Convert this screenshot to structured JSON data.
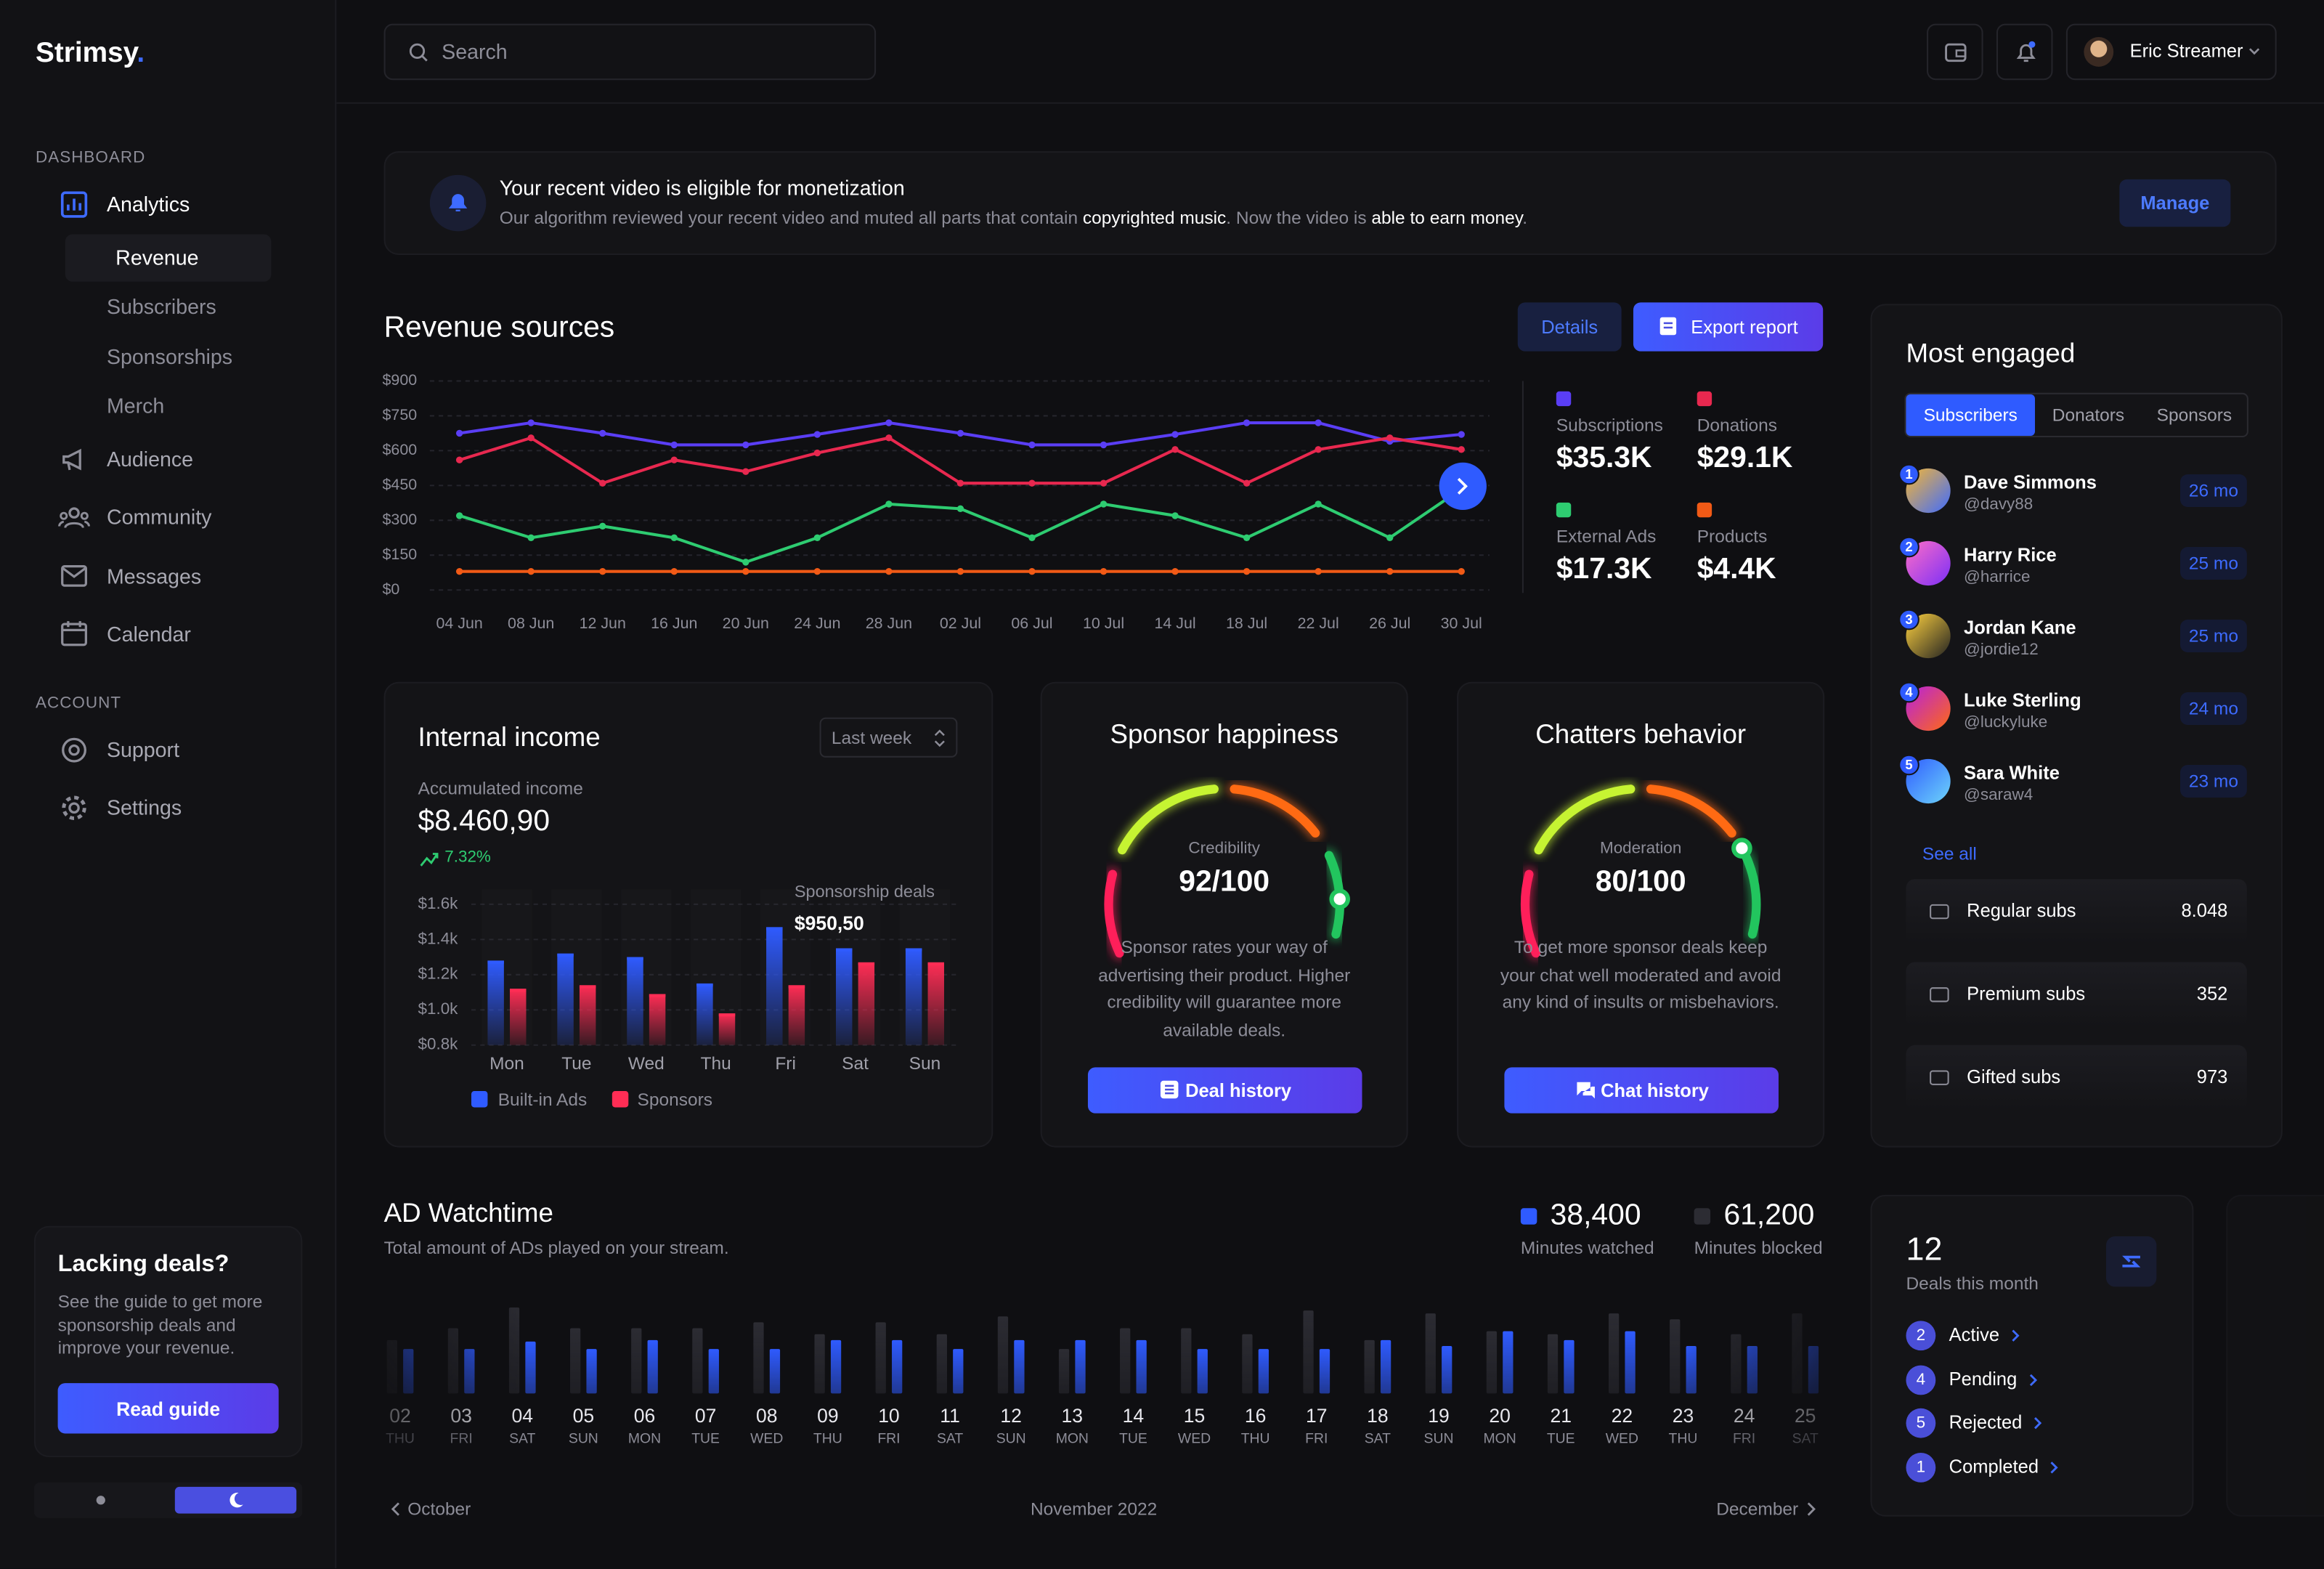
{
  "sidebar": {
    "brand": "Strimsy",
    "brand_dot": ".",
    "sections": [
      {
        "title": "DASHBOARD",
        "items": [
          {
            "label": "Analytics",
            "children": [
              {
                "label": "Revenue"
              },
              {
                "label": "Subscribers"
              },
              {
                "label": "Sponsorships"
              },
              {
                "label": "Merch"
              }
            ]
          },
          {
            "label": "Audience"
          },
          {
            "label": "Community"
          },
          {
            "label": "Messages"
          },
          {
            "label": "Calendar"
          }
        ]
      },
      {
        "title": "ACCOUNT",
        "items": [
          {
            "label": "Support"
          },
          {
            "label": "Settings"
          }
        ]
      }
    ],
    "promo": {
      "title": "Lacking deals?",
      "text": "See the guide to get more sponsorship deals and improve your revenue.",
      "button": "Read guide"
    }
  },
  "topbar": {
    "search_placeholder": "Search",
    "user": "Eric Streamer"
  },
  "notice": {
    "title": "Your recent video is eligible for monetization",
    "message": [
      "Our algorithm reviewed your recent video and muted all parts that contain ",
      "copyrighted music",
      ". Now the video is ",
      "able to earn money",
      "."
    ],
    "button": "Manage"
  },
  "chart_data": [
    {
      "type": "line",
      "title": "Revenue sources",
      "buttons": [
        "Details",
        "Export report"
      ],
      "categories": [
        "04 Jun",
        "08 Jun",
        "12 Jun",
        "16 Jun",
        "20 Jun",
        "24 Jun",
        "28 Jun",
        "02 Jul",
        "06 Jul",
        "10 Jul",
        "14 Jul",
        "18 Jul",
        "22 Jul",
        "26 Jul",
        "30 Jul"
      ],
      "ylim": [
        0,
        900
      ],
      "yticks": [
        {
          "value": 0,
          "label": "$0"
        },
        {
          "value": 150,
          "label": "$150"
        },
        {
          "value": 300,
          "label": "$300"
        },
        {
          "value": 450,
          "label": "$450"
        },
        {
          "value": 600,
          "label": "$600"
        },
        {
          "value": 750,
          "label": "$750"
        },
        {
          "value": 900,
          "label": "$900"
        }
      ],
      "grid": true,
      "series": [
        {
          "name": "Subscriptions",
          "color": "#5a3ef5",
          "total": "$35.3K",
          "values": [
            675,
            720,
            675,
            625,
            625,
            670,
            720,
            675,
            625,
            625,
            670,
            720,
            720,
            640,
            670
          ]
        },
        {
          "name": "Donations",
          "color": "#e8284f",
          "total": "$29.1K",
          "values": [
            560,
            655,
            460,
            560,
            510,
            590,
            655,
            460,
            460,
            460,
            605,
            460,
            605,
            655,
            605
          ]
        },
        {
          "name": "External Ads",
          "color": "#2ecc71",
          "total": "$17.3K",
          "values": [
            320,
            225,
            275,
            225,
            120,
            225,
            370,
            350,
            225,
            370,
            320,
            225,
            370,
            225,
            435
          ]
        },
        {
          "name": "Products",
          "color": "#f15a16",
          "total": "$4.4K",
          "values": [
            80,
            80,
            80,
            80,
            80,
            80,
            80,
            80,
            80,
            80,
            80,
            80,
            80,
            80,
            80
          ]
        }
      ]
    },
    {
      "type": "bar",
      "title": "Internal income",
      "period": "Last week",
      "metric_label": "Accumulated income",
      "metric": "$8.460,90",
      "change": "7.32%",
      "categories": [
        "Mon",
        "Tue",
        "Wed",
        "Thu",
        "Fri",
        "Sat",
        "Sun"
      ],
      "ylim": [
        800,
        1600
      ],
      "yticks": [
        {
          "value": 800,
          "label": "$0.8k"
        },
        {
          "value": 1000,
          "label": "$1.0k"
        },
        {
          "value": 1200,
          "label": "$1.2k"
        },
        {
          "value": 1400,
          "label": "$1.4k"
        },
        {
          "value": 1600,
          "label": "$1.6k"
        }
      ],
      "grid": true,
      "series": [
        {
          "name": "Built-in Ads",
          "color": "#2f5bff",
          "values": [
            1280,
            1320,
            1300,
            1150,
            1470,
            1350,
            1350
          ]
        },
        {
          "name": "Sponsors",
          "color": "#ff2d55",
          "values": [
            1120,
            1140,
            1090,
            980,
            1140,
            1270,
            1270
          ]
        }
      ],
      "tooltip": {
        "title": "Sponsorship deals",
        "value": "$950,50"
      }
    },
    {
      "type": "gauge",
      "title": "Sponsor happiness",
      "label": "Credibility",
      "value": 92,
      "max": 100,
      "value_label": "92/100",
      "text": "Sponsor rates your way of advertising their product. Higher credibility will guarantee more available deals.",
      "button": "Deal history"
    },
    {
      "type": "gauge",
      "title": "Chatters behavior",
      "label": "Moderation",
      "value": 80,
      "max": 100,
      "value_label": "80/100",
      "text": "To get more sponsor deals keep your chat well moderated and avoid any kind of insults or misbehaviors.",
      "button": "Chat history"
    },
    {
      "type": "bar",
      "title": "AD Watchtime",
      "subtitle": "Total amount of ADs played on your stream.",
      "categories": [
        "02",
        "03",
        "04",
        "05",
        "06",
        "07",
        "08",
        "09",
        "10",
        "11",
        "12",
        "13",
        "14",
        "15",
        "16",
        "17",
        "18",
        "19",
        "20",
        "21",
        "22",
        "23",
        "24",
        "25"
      ],
      "weekdays": [
        "THU",
        "FRI",
        "SAT",
        "SUN",
        "MON",
        "TUE",
        "WED",
        "THU",
        "FRI",
        "SAT",
        "SUN",
        "MON",
        "TUE",
        "WED",
        "THU",
        "FRI",
        "SAT",
        "SUN",
        "MON",
        "TUE",
        "WED",
        "THU",
        "FRI",
        "SAT"
      ],
      "series": [
        {
          "name": "Minutes watched",
          "color": "#2f5bff",
          "total": "38,400",
          "values": [
            1500,
            1500,
            1750,
            1500,
            1800,
            1500,
            1500,
            1800,
            1800,
            1500,
            1800,
            1800,
            1800,
            1500,
            1500,
            1500,
            1800,
            1600,
            2100,
            1800,
            2100,
            1600,
            1600,
            1600
          ]
        },
        {
          "name": "Minutes blocked",
          "color": "#2c2c33",
          "total": "61,200",
          "values": [
            1800,
            2200,
            2900,
            2200,
            2200,
            2200,
            2400,
            2000,
            2400,
            2000,
            2600,
            1500,
            2200,
            2200,
            2000,
            2800,
            1800,
            2700,
            2100,
            2000,
            2700,
            2500,
            2000,
            2700
          ]
        }
      ],
      "nav": {
        "prev": "October",
        "current": "November 2022",
        "next": "December"
      }
    }
  ],
  "most_engaged": {
    "title": "Most engaged",
    "tabs": [
      "Subscribers",
      "Donators",
      "Sponsors"
    ],
    "people": [
      {
        "rank": 1,
        "name": "Dave Simmons",
        "handle": "@davy88",
        "duration": "26 mo"
      },
      {
        "rank": 2,
        "name": "Harry Rice",
        "handle": "@harrice",
        "duration": "25 mo"
      },
      {
        "rank": 3,
        "name": "Jordan Kane",
        "handle": "@jordie12",
        "duration": "25 mo"
      },
      {
        "rank": 4,
        "name": "Luke Sterling",
        "handle": "@luckyluke",
        "duration": "24 mo"
      },
      {
        "rank": 5,
        "name": "Sara White",
        "handle": "@saraw4",
        "duration": "23 mo"
      }
    ],
    "see_all": "See all",
    "stats": [
      {
        "label": "Regular subs",
        "value": "8.048"
      },
      {
        "label": "Premium subs",
        "value": "352"
      },
      {
        "label": "Gifted subs",
        "value": "973"
      }
    ]
  },
  "deals": {
    "count": 12,
    "label": "Deals this month",
    "statuses": [
      {
        "count": 2,
        "label": "Active"
      },
      {
        "count": 4,
        "label": "Pending"
      },
      {
        "count": 5,
        "label": "Rejected"
      },
      {
        "count": 1,
        "label": "Completed"
      }
    ]
  }
}
